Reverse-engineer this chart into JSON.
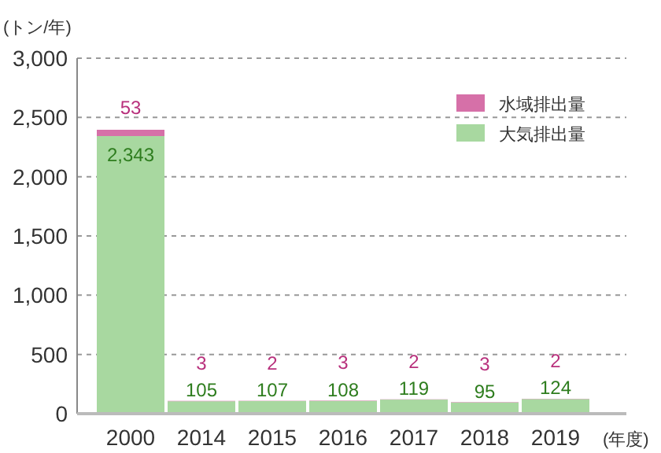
{
  "chart_data": {
    "type": "bar",
    "stacked": true,
    "ylabel": "(トン/年)",
    "xlabel": "(年度)",
    "categories": [
      "2000",
      "2014",
      "2015",
      "2016",
      "2017",
      "2018",
      "2019"
    ],
    "series": [
      {
        "name": "大気排出量",
        "color": "#a8d8a0",
        "values": [
          2343,
          105,
          107,
          108,
          119,
          95,
          124
        ],
        "value_labels": [
          "2,343",
          "105",
          "107",
          "108",
          "119",
          "95",
          "124"
        ]
      },
      {
        "name": "水域排出量",
        "color": "#d670a8",
        "values": [
          53,
          3,
          2,
          3,
          2,
          3,
          2
        ],
        "value_labels": [
          "53",
          "3",
          "2",
          "3",
          "2",
          "3",
          "2"
        ]
      }
    ],
    "ylim": [
      0,
      3000
    ],
    "yticks": [
      {
        "value": 0,
        "label": "0"
      },
      {
        "value": 500,
        "label": "500"
      },
      {
        "value": 1000,
        "label": "1,000"
      },
      {
        "value": 1500,
        "label": "1,500"
      },
      {
        "value": 2000,
        "label": "2,000"
      },
      {
        "value": 2500,
        "label": "2,500"
      },
      {
        "value": 3000,
        "label": "3,000"
      }
    ],
    "grid": "y",
    "legend": "top right"
  }
}
